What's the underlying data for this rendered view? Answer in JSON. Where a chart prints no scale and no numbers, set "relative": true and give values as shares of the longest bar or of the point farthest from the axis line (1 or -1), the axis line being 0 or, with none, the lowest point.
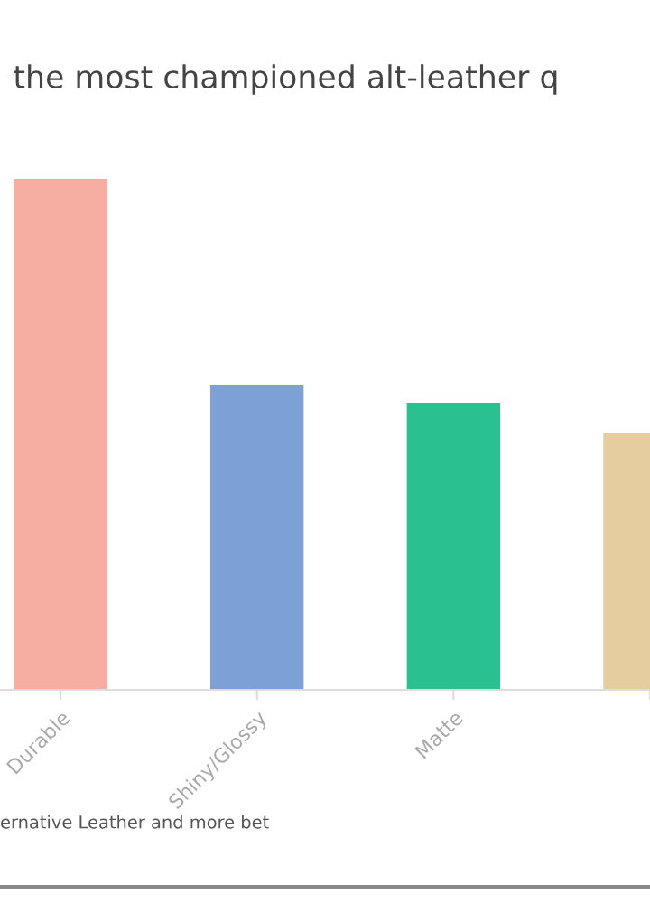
{
  "chart_data": {
    "type": "bar",
    "title": "the most championed alt-leather q",
    "categories": [
      "Durable",
      "Shiny/Glossy",
      "Matte",
      null
    ],
    "values": [
      1,
      0.597,
      0.562,
      0.502
    ],
    "colors": [
      "#f7aea2",
      "#7da0d6",
      "#2bc08f",
      "#e5cd9f"
    ],
    "relative": true,
    "grid": false,
    "legend": false,
    "annotations": [
      "ernative Leather and more bet"
    ]
  }
}
